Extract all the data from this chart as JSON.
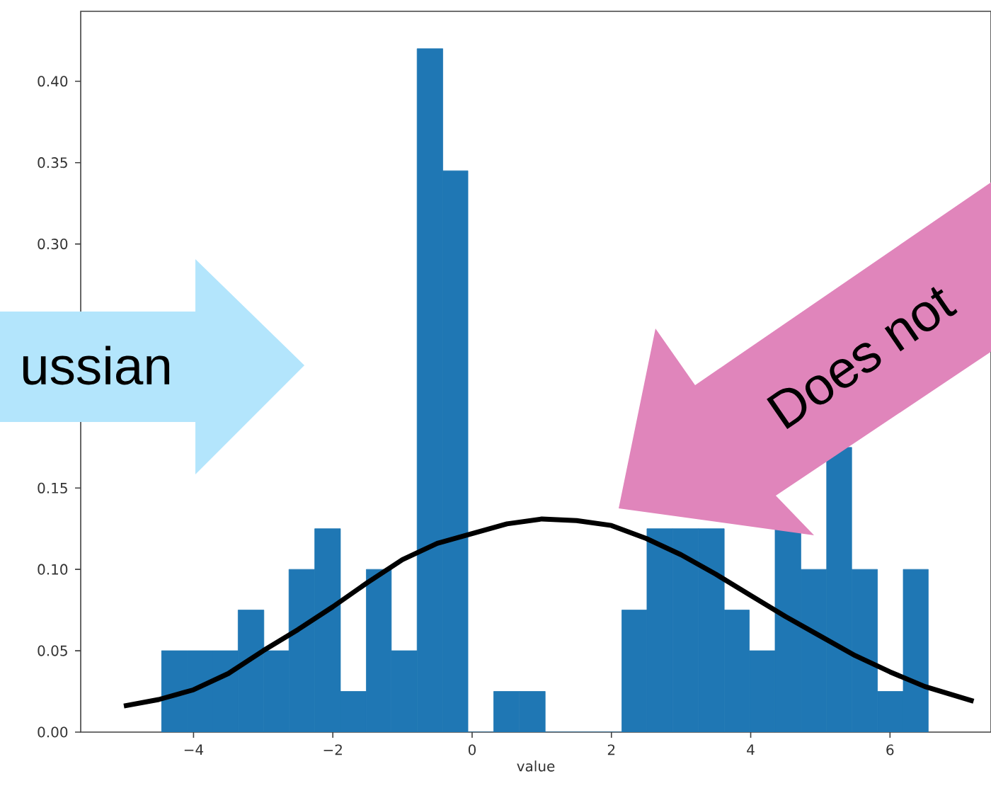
{
  "chart_data": {
    "type": "histogram",
    "xlabel": "value",
    "color": "#1f77b4",
    "bins": [
      -4.46,
      -4.09,
      -3.73,
      -3.36,
      -2.99,
      -2.63,
      -2.26,
      -1.89,
      -1.52,
      -1.16,
      -0.79,
      -0.42,
      -0.06,
      0.31,
      0.68,
      1.05,
      2.15,
      2.51,
      2.88,
      3.25,
      3.62,
      3.98,
      4.35,
      4.72,
      5.09,
      5.45,
      5.82,
      6.19,
      6.55
    ],
    "values": [
      0.05,
      0.05,
      0.05,
      0.075,
      0.05,
      0.1,
      0.125,
      0.025,
      0.1,
      0.05,
      0.42,
      0.345,
      0,
      0.025,
      0.025,
      0,
      0.075,
      0.125,
      0.125,
      0.125,
      0.075,
      0.05,
      0.125,
      0.1,
      0.175,
      0.1,
      0.025,
      0.1
    ],
    "series": [
      {
        "type": "line",
        "color": "#000000",
        "x": [
          -5,
          -4.5,
          -4,
          -3.5,
          -3,
          -2.5,
          -2,
          -1.5,
          -1,
          -0.5,
          0,
          0.5,
          1,
          1.5,
          2,
          2.5,
          3,
          3.5,
          4,
          4.5,
          5,
          5.5,
          6,
          6.5,
          7.2
        ],
        "values": [
          0.016,
          0.02,
          0.026,
          0.036,
          0.05,
          0.063,
          0.077,
          0.092,
          0.106,
          0.116,
          0.122,
          0.128,
          0.131,
          0.13,
          0.127,
          0.119,
          0.109,
          0.097,
          0.084,
          0.071,
          0.059,
          0.047,
          0.037,
          0.028,
          0.019
        ]
      }
    ],
    "xlim": [
      -5.62,
      7.45
    ],
    "ylim": [
      0,
      0.443
    ],
    "xticks": [
      {
        "value": -4,
        "label": "−4"
      },
      {
        "value": -2,
        "label": "−2"
      },
      0,
      2,
      4,
      6
    ],
    "yticks": [
      {
        "value": 0,
        "label": "0.00"
      },
      {
        "value": 0.05,
        "label": "0.05"
      },
      {
        "value": 0.1,
        "label": "0.10"
      },
      {
        "value": 0.15,
        "label": "0.15"
      },
      {
        "value": 0.2,
        "label": null
      },
      {
        "value": 0.25,
        "label": null
      },
      {
        "value": 0.3,
        "label": "0.30"
      },
      {
        "value": 0.35,
        "label": "0.35"
      },
      {
        "value": 0.4,
        "label": "0.40"
      }
    ],
    "annotations": [
      "ussian",
      "Does not"
    ]
  }
}
